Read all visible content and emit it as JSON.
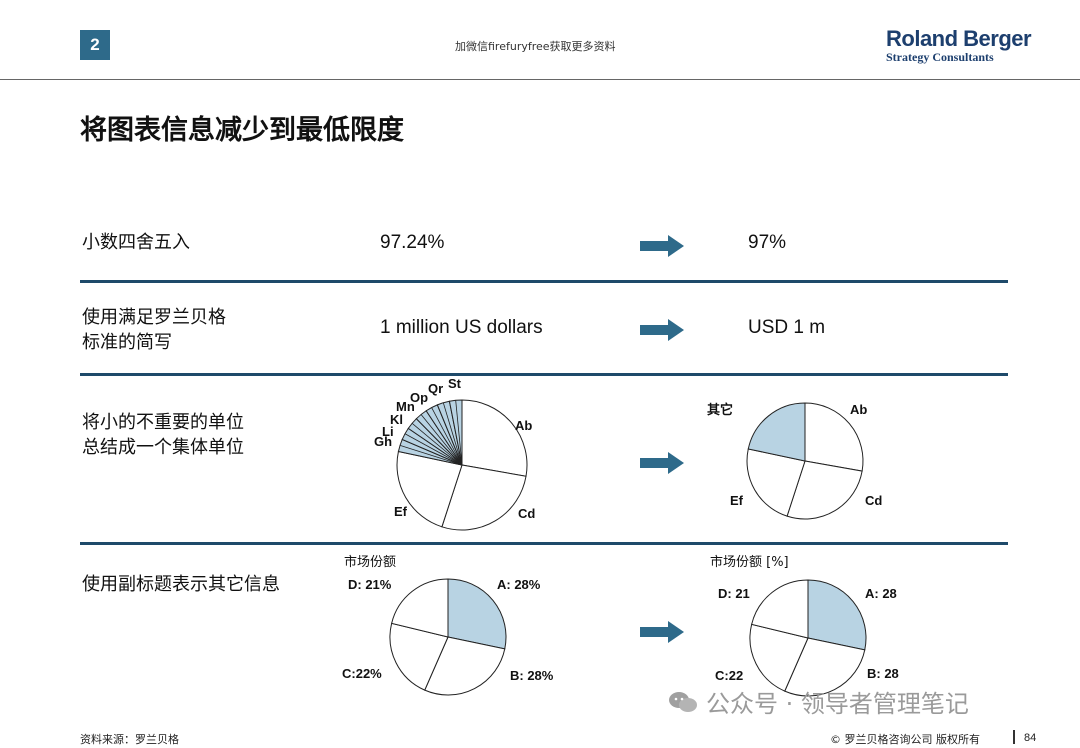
{
  "header": {
    "page_number": "2",
    "note": "加微信firefuryfree获取更多资料",
    "logo_line1": "Roland Berger",
    "logo_line2": "Strategy Consultants"
  },
  "title": "将图表信息减少到最低限度",
  "rows": [
    {
      "label": "小数四舍五入",
      "before": "97.24%",
      "after": "97%"
    },
    {
      "label_line1": "使用满足罗兰贝格",
      "label_line2": "标准的简写",
      "before": "1 million US dollars",
      "after": "USD 1 m"
    },
    {
      "label_line1": "将小的不重要的单位",
      "label_line2": "总结成一个集体单位"
    },
    {
      "label": "使用副标题表示其它信息"
    }
  ],
  "colors": {
    "accent": "#2e6a8a",
    "separator": "#1e4a6a",
    "highlight_slice": "#b8d3e3",
    "arrow": "#2e6a8a"
  },
  "icons": {
    "arrow": "right-arrow-icon",
    "watermark": "wechat-icon"
  },
  "chart_data": [
    {
      "type": "pie",
      "slices_small": [
        "Gh",
        "Li",
        "Kl",
        "Mn",
        "Op",
        "Qr",
        "St"
      ],
      "labels": [
        "Ab",
        "Cd",
        "Ef",
        "Gh",
        "Li",
        "Kl",
        "Mn",
        "Op",
        "Qr",
        "St"
      ],
      "highlighted": [
        "Gh",
        "Li",
        "Kl",
        "Mn",
        "Op",
        "Qr",
        "St"
      ]
    },
    {
      "type": "pie",
      "labels": [
        "Ab",
        "Cd",
        "Ef",
        "其它"
      ],
      "highlighted": [
        "其它"
      ]
    },
    {
      "type": "pie",
      "subtitle": "市场份额",
      "labels": [
        "A: 28%",
        "B: 28%",
        "C:22%",
        "D: 21%"
      ],
      "values": [
        28,
        28,
        22,
        21
      ],
      "highlighted": [
        "A: 28%"
      ]
    },
    {
      "type": "pie",
      "subtitle": "市场份额 [%]",
      "labels": [
        "A: 28",
        "B: 28",
        "C:22",
        "D: 21"
      ],
      "values": [
        28,
        28,
        22,
        21
      ],
      "highlighted": [
        "A: 28"
      ]
    }
  ],
  "footer": {
    "source": "资料来源：罗兰贝格",
    "copyright": "© 罗兰贝格咨询公司 版权所有",
    "page": "84"
  },
  "watermark": "公众号 · 领导者管理笔记"
}
